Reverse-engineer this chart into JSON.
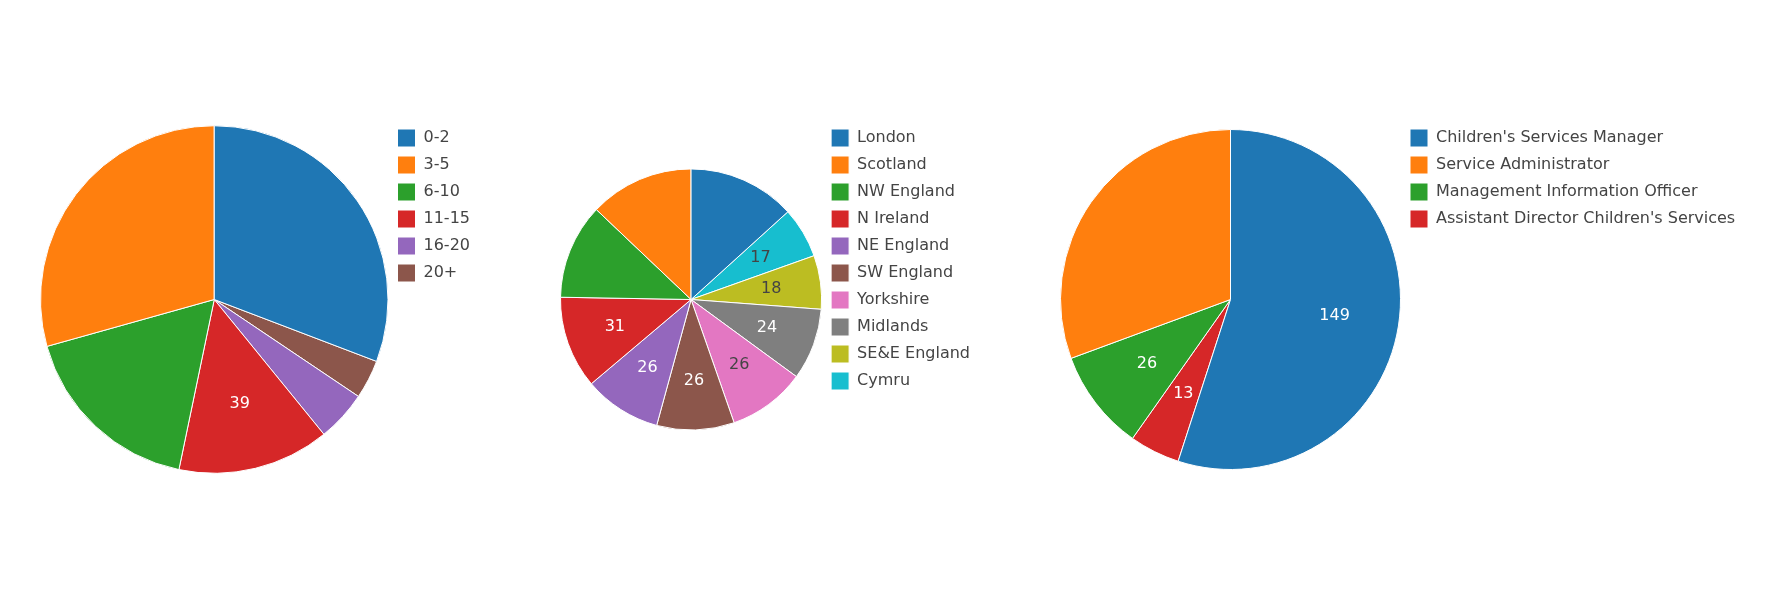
{
  "chart_data": [
    {
      "type": "pie",
      "categories": [
        "0-2",
        "3-5",
        "6-10",
        "11-15",
        "16-20",
        "20+"
      ],
      "values": [
        85,
        81,
        48,
        39,
        13,
        10
      ],
      "colors": [
        "#1f77b4",
        "#ff7f0e",
        "#2ca02c",
        "#d62728",
        "#9467bd",
        "#8c564b"
      ],
      "value_labels": [
        null,
        null,
        null,
        "39",
        null,
        null
      ],
      "legend": "right"
    },
    {
      "type": "pie",
      "categories": [
        "London",
        "Scotland",
        "NW England",
        "N Ireland",
        "NE England",
        "SW England",
        "Yorkshire",
        "Midlands",
        "SE&E England",
        "Cymru"
      ],
      "values": [
        36,
        35,
        32,
        31,
        26,
        26,
        26,
        24,
        18,
        17
      ],
      "colors": [
        "#1f77b4",
        "#ff7f0e",
        "#2ca02c",
        "#d62728",
        "#9467bd",
        "#8c564b",
        "#e377c2",
        "#7f7f7f",
        "#bcbd22",
        "#17becf"
      ],
      "value_labels": [
        null,
        null,
        null,
        "31",
        "26",
        "26",
        "26",
        "24",
        "18",
        "17"
      ],
      "legend": "right"
    },
    {
      "type": "pie",
      "categories": [
        "Children's Services Manager",
        "Service Administrator",
        "Management Information Officer",
        "Assistant Director Children's Services"
      ],
      "values": [
        149,
        83,
        26,
        13
      ],
      "colors": [
        "#1f77b4",
        "#ff7f0e",
        "#2ca02c",
        "#d62728"
      ],
      "value_labels": [
        "149",
        null,
        "26",
        "13"
      ],
      "legend": "right"
    }
  ]
}
